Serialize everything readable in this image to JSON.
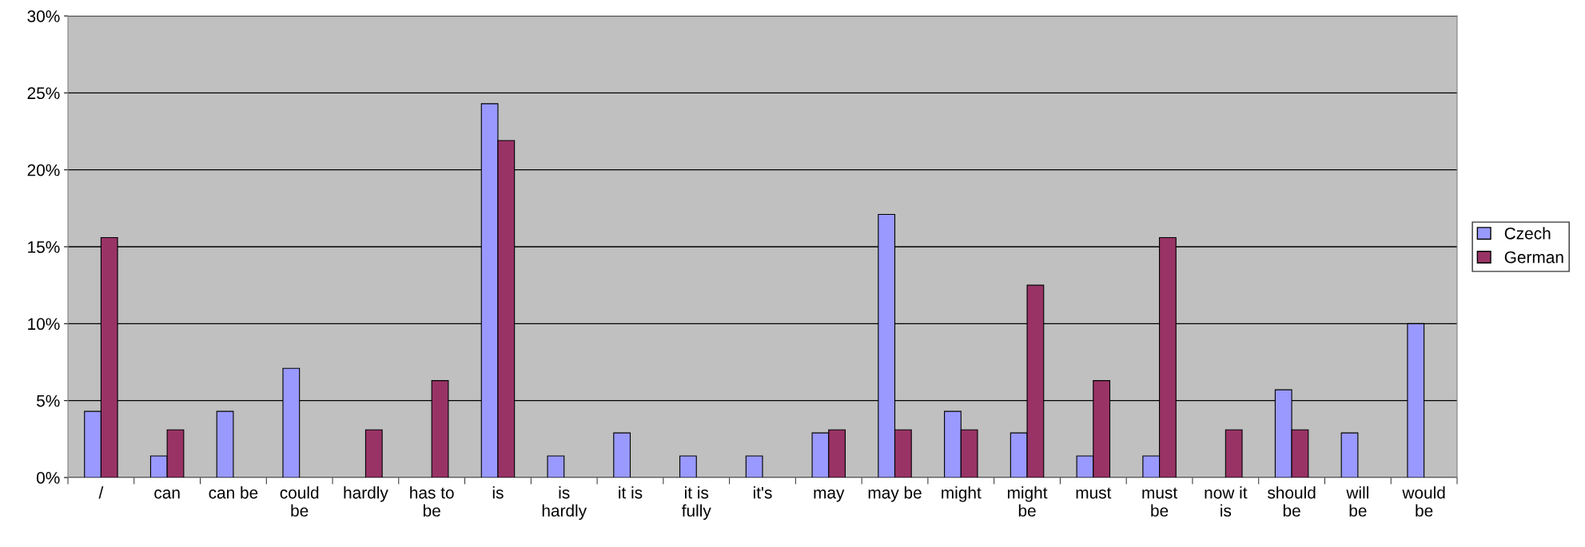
{
  "chart_data": {
    "type": "bar",
    "categories": [
      "/",
      "can",
      "can be",
      "could be",
      "hardly",
      "has to be",
      "is",
      "is hardly",
      "it is",
      "it is fully",
      "it's",
      "may",
      "may be",
      "might",
      "might be",
      "must",
      "must be",
      "now it is",
      "should be",
      "will be",
      "would be"
    ],
    "series": [
      {
        "name": "Czech",
        "color": "#9999ff",
        "values": [
          4.3,
          1.4,
          4.3,
          7.1,
          null,
          null,
          24.3,
          1.4,
          2.9,
          1.4,
          1.4,
          2.9,
          17.1,
          4.3,
          2.9,
          1.4,
          1.4,
          null,
          5.7,
          2.9,
          10.0
        ]
      },
      {
        "name": "German",
        "color": "#993366",
        "values": [
          15.6,
          3.1,
          null,
          null,
          3.1,
          6.3,
          21.9,
          null,
          null,
          null,
          null,
          3.1,
          3.1,
          3.1,
          12.5,
          6.3,
          15.6,
          3.1,
          3.1,
          null,
          null
        ]
      }
    ],
    "ylim": [
      0,
      30
    ],
    "yticks": [
      {
        "value": 0,
        "label": "0%"
      },
      {
        "value": 5,
        "label": "5%"
      },
      {
        "value": 10,
        "label": "10%"
      },
      {
        "value": 15,
        "label": "15%"
      },
      {
        "value": 20,
        "label": "20%"
      },
      {
        "value": 25,
        "label": "25%"
      },
      {
        "value": 30,
        "label": "30%"
      }
    ],
    "grid": "y",
    "legend": "right"
  }
}
